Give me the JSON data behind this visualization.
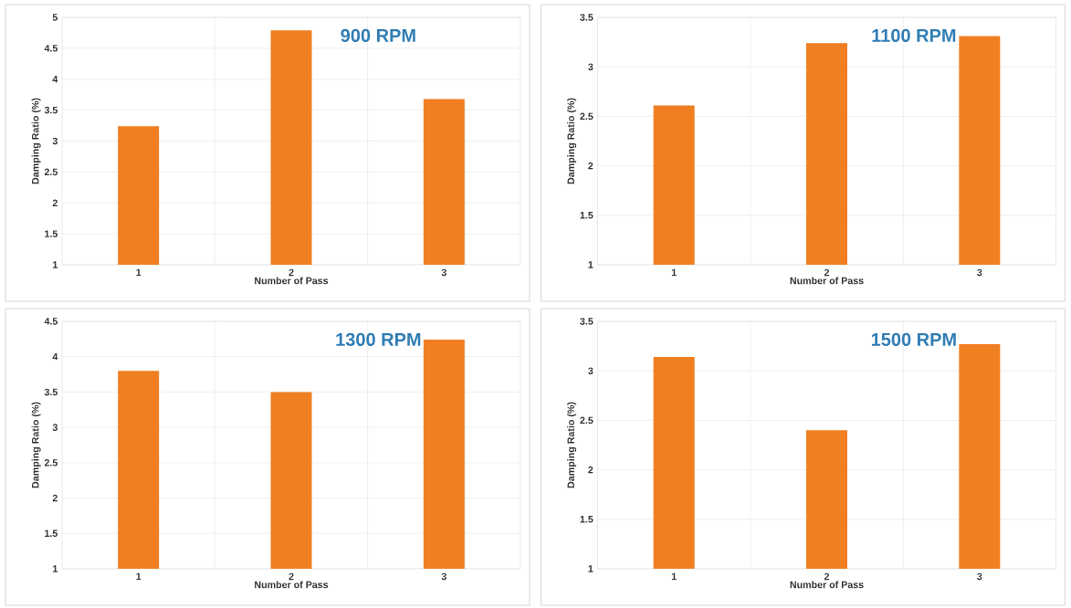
{
  "chart_data": [
    {
      "type": "bar",
      "title": "900 RPM",
      "xlabel": "Number of Pass",
      "ylabel": "Damping Ratio (%)",
      "categories": [
        "1",
        "2",
        "3"
      ],
      "values": [
        3.24,
        4.79,
        3.68
      ],
      "color": "#f07f22",
      "ylim": [
        1,
        5
      ],
      "yticks": [
        1,
        1.5,
        2,
        2.5,
        3,
        3.5,
        4,
        4.5,
        5
      ],
      "grid": true
    },
    {
      "type": "bar",
      "title": "1100 RPM",
      "xlabel": "Number of Pass",
      "ylabel": "Damping Ratio (%)",
      "categories": [
        "1",
        "2",
        "3"
      ],
      "values": [
        2.61,
        3.24,
        3.31
      ],
      "color": "#f07f22",
      "ylim": [
        1,
        3.5
      ],
      "yticks": [
        1,
        1.5,
        2,
        2.5,
        3,
        3.5
      ],
      "grid": true
    },
    {
      "type": "bar",
      "title": "1300 RPM",
      "xlabel": "Number of Pass",
      "ylabel": "Damping Ratio (%)",
      "categories": [
        "1",
        "2",
        "3"
      ],
      "values": [
        3.8,
        3.5,
        4.24
      ],
      "color": "#f07f22",
      "ylim": [
        1,
        4.5
      ],
      "yticks": [
        1,
        1.5,
        2,
        2.5,
        3,
        3.5,
        4,
        4.5
      ],
      "grid": true
    },
    {
      "type": "bar",
      "title": "1500 RPM",
      "xlabel": "Number of Pass",
      "ylabel": "Damping Ratio (%)",
      "categories": [
        "1",
        "2",
        "3"
      ],
      "values": [
        3.14,
        2.4,
        3.27
      ],
      "color": "#f07f22",
      "ylim": [
        1,
        3.5
      ],
      "yticks": [
        1,
        1.5,
        2,
        2.5,
        3,
        3.5
      ],
      "grid": true
    }
  ]
}
